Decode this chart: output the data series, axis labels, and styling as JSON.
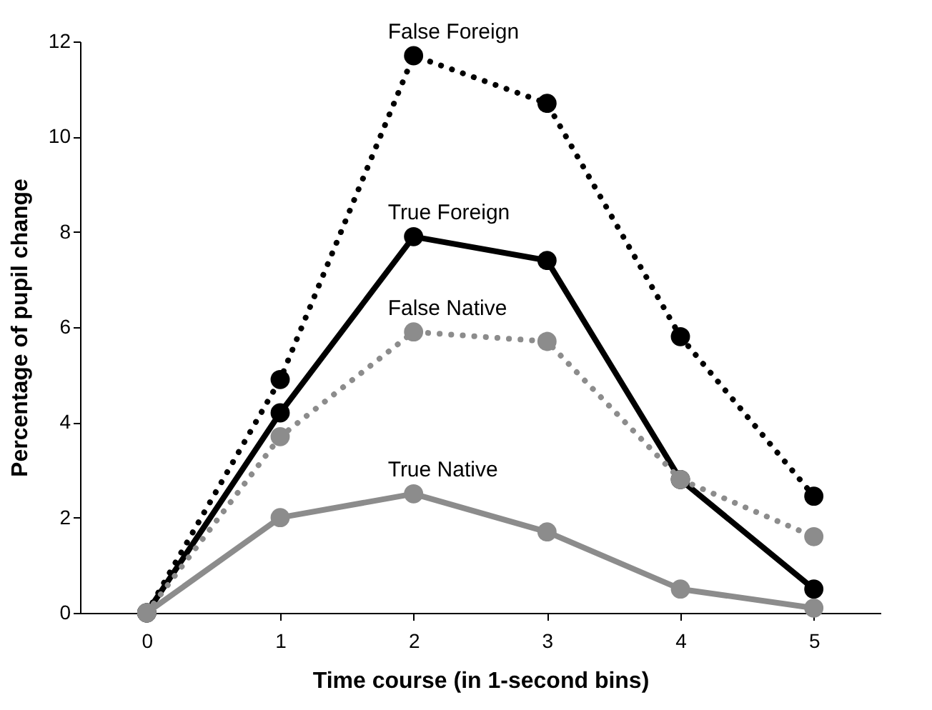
{
  "chart_data": {
    "type": "line",
    "xlabel": "Time course (in 1-second bins)",
    "ylabel": "Percentage of pupil change",
    "categories": [
      "0",
      "1",
      "2",
      "3",
      "4",
      "5"
    ],
    "ylim": [
      0,
      12
    ],
    "yticks": [
      0,
      2,
      4,
      6,
      8,
      10,
      12
    ],
    "grid": false,
    "marker": "circle",
    "series": [
      {
        "name": "False Foreign",
        "color": "#000000",
        "line_style": "dotted",
        "values": [
          0,
          4.9,
          11.7,
          10.7,
          5.8,
          2.45
        ]
      },
      {
        "name": "True Foreign",
        "color": "#000000",
        "line_style": "solid",
        "values": [
          0,
          4.2,
          7.9,
          7.4,
          2.8,
          0.5
        ]
      },
      {
        "name": "False Native",
        "color": "#8c8c8c",
        "line_style": "dotted",
        "values": [
          0,
          3.7,
          5.9,
          5.7,
          2.8,
          1.6
        ]
      },
      {
        "name": "True Native",
        "color": "#8c8c8c",
        "line_style": "solid",
        "values": [
          0,
          2.0,
          2.5,
          1.7,
          0.5,
          0.1
        ]
      }
    ]
  }
}
